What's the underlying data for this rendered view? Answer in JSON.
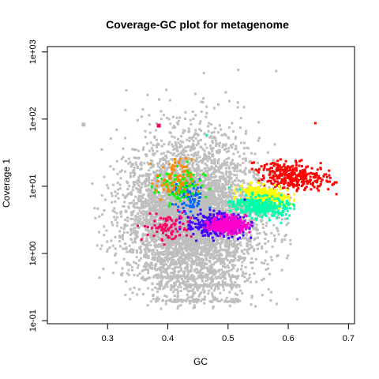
{
  "chart_data": {
    "type": "scatter",
    "title": "Coverage-GC plot for metagenome",
    "xlabel": "GC",
    "ylabel": "Coverage 1",
    "xlim": [
      0.2,
      0.71
    ],
    "ylim": [
      0.09,
      1200
    ],
    "y_scale": "log",
    "grid": false,
    "legend": "none",
    "x_ticks": [
      0.3,
      0.4,
      0.5,
      0.6,
      0.7
    ],
    "x_tick_labels": [
      "0.3",
      "0.4",
      "0.5",
      "0.6",
      "0.7"
    ],
    "y_ticks": [
      0.1,
      1,
      10,
      100,
      1000
    ],
    "y_tick_labels": [
      "1e-01",
      "1e+00",
      "1e+01",
      "1e+02",
      "1e+03"
    ],
    "background_series": {
      "color": "#bebebe",
      "gc_center": 0.44,
      "gc_spread": 0.055,
      "coverage_log10_center": 0.55,
      "coverage_log10_spread": 0.65,
      "gc_range": [
        0.26,
        0.63
      ],
      "coverage_range": [
        0.15,
        550
      ]
    },
    "clusters": [
      {
        "color": "#ff0000",
        "gc_range": [
          0.55,
          0.67
        ],
        "coverage_range": [
          9,
          22
        ]
      },
      {
        "color": "#ffff00",
        "gc_range": [
          0.52,
          0.6
        ],
        "coverage_range": [
          5,
          10
        ]
      },
      {
        "color": "#00ffaa",
        "gc_range": [
          0.51,
          0.6
        ],
        "coverage_range": [
          3.5,
          7
        ]
      },
      {
        "color": "#4400ff",
        "gc_range": [
          0.43,
          0.53
        ],
        "coverage_range": [
          1.8,
          4
        ]
      },
      {
        "color": "#ff00cc",
        "gc_range": [
          0.47,
          0.53
        ],
        "coverage_range": [
          2,
          3.5
        ]
      },
      {
        "color": "#ff0066",
        "gc_range": [
          0.36,
          0.44
        ],
        "coverage_range": [
          1.5,
          4
        ]
      },
      {
        "color": "#0066ff",
        "gc_range": [
          0.41,
          0.46
        ],
        "coverage_range": [
          4,
          12
        ]
      },
      {
        "color": "#00ff00",
        "gc_range": [
          0.38,
          0.46
        ],
        "coverage_range": [
          5,
          20
        ]
      },
      {
        "color": "#ff8800",
        "gc_range": [
          0.38,
          0.44
        ],
        "coverage_range": [
          6,
          25
        ]
      }
    ]
  }
}
